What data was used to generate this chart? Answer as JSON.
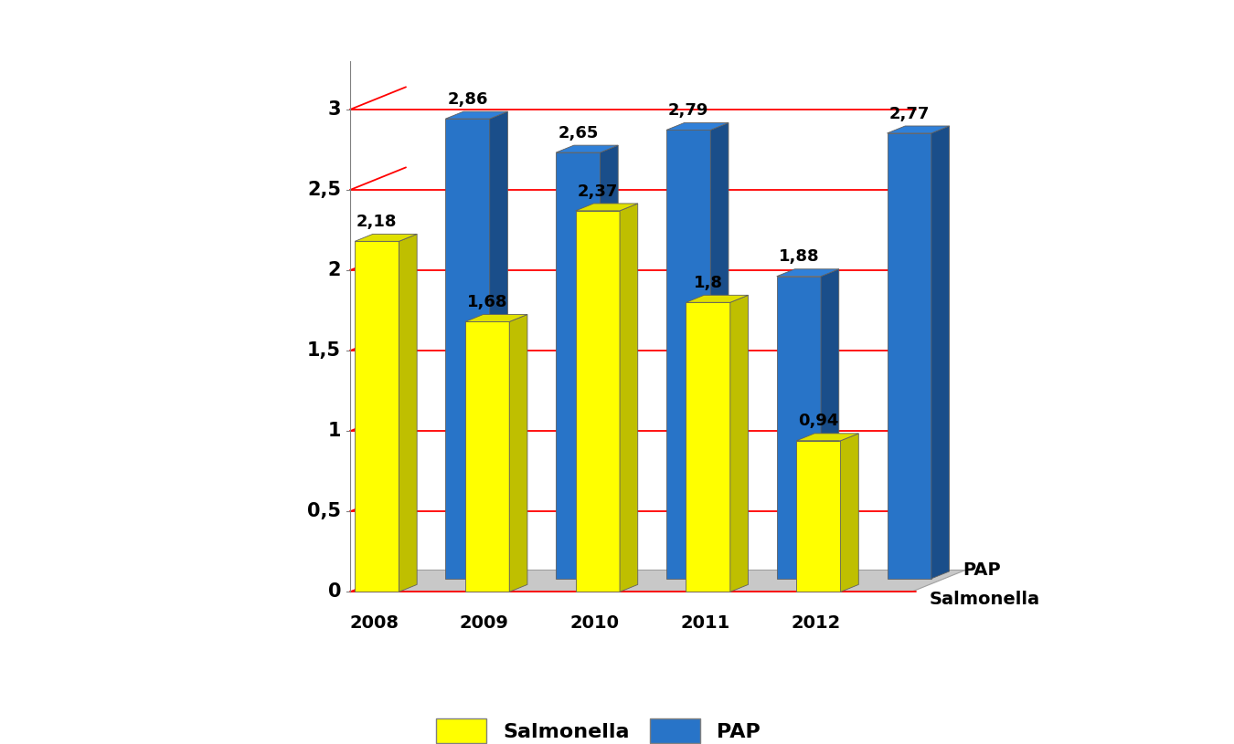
{
  "years": [
    "2008",
    "2009",
    "2010",
    "2011",
    "2012"
  ],
  "salmonella": [
    2.18,
    1.68,
    2.37,
    1.8,
    0.94
  ],
  "pap": [
    2.86,
    2.65,
    2.79,
    1.88,
    2.77
  ],
  "sal_face": "#FFFF00",
  "sal_side": "#BFBF00",
  "sal_top": "#E0E000",
  "pap_face": "#2874C8",
  "pap_side": "#1A4E8A",
  "pap_top": "#3080D8",
  "floor_color": "#C8C8C8",
  "floor_edge": "#A0A0A0",
  "grid_color": "#FF0000",
  "yticks": [
    0,
    0.5,
    1.0,
    1.5,
    2.0,
    2.5,
    3.0
  ],
  "ytick_labels": [
    "0",
    "0,5",
    "1",
    "1,5",
    "2",
    "2,5",
    "3"
  ],
  "ylabel_right1": "PAP",
  "ylabel_right2": "Salmonella",
  "legend_salmonella": "Salmonella",
  "legend_pap": "PAP",
  "ymax": 3.3
}
